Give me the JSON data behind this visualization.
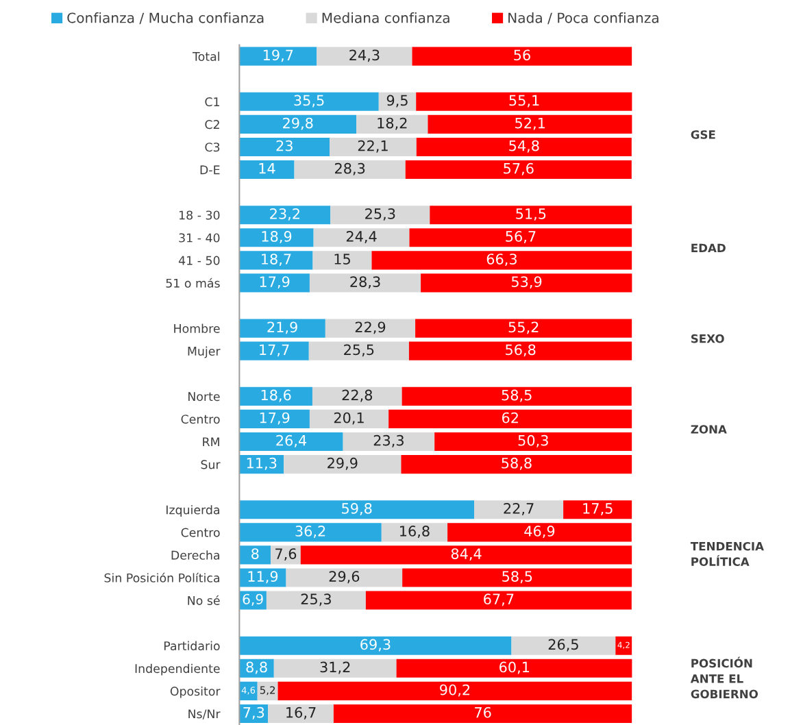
{
  "chart_data": {
    "type": "bar",
    "orientation": "horizontal",
    "stacked": true,
    "legend": "top",
    "grid": false,
    "tick_labels": "y",
    "xlim": [
      0,
      100
    ],
    "categories": [
      "Total",
      null,
      "C1",
      "C2",
      "C3",
      "D-E",
      null,
      "18 - 30",
      "31 - 40",
      "41 - 50",
      "51 o más",
      null,
      "Hombre",
      "Mujer",
      null,
      "Norte",
      "Centro",
      "RM",
      "Sur",
      null,
      "Izquierda",
      "Centro",
      "Derecha",
      "Sin Posición Política",
      "No sé",
      null,
      "Partidario",
      "Independiente",
      "Opositor",
      "Ns/Nr"
    ],
    "series": [
      {
        "name": "Confianza / Mucha confianza",
        "color": "#29abe2",
        "values": [
          19.7,
          null,
          35.5,
          29.8,
          23,
          14,
          null,
          23.2,
          18.9,
          18.7,
          17.9,
          null,
          21.9,
          17.7,
          null,
          18.6,
          17.9,
          26.4,
          11.3,
          null,
          59.8,
          36.2,
          8,
          11.9,
          6.9,
          null,
          69.3,
          8.8,
          4.6,
          7.3
        ],
        "value_labels": [
          "19,7",
          null,
          "35,5",
          "29,8",
          "23",
          "14",
          null,
          "23,2",
          "18,9",
          "18,7",
          "17,9",
          null,
          "21,9",
          "17,7",
          null,
          "18,6",
          "17,9",
          "26,4",
          "11,3",
          null,
          "59,8",
          "36,2",
          "8",
          "11,9",
          "6,9",
          null,
          "69,3",
          "8,8",
          "4,6",
          "7,3"
        ]
      },
      {
        "name": "Mediana confianza",
        "color": "#d9d9d9",
        "values": [
          24.3,
          null,
          9.5,
          18.2,
          22.1,
          28.3,
          null,
          25.3,
          24.4,
          15,
          28.3,
          null,
          22.9,
          25.5,
          null,
          22.8,
          20.1,
          23.3,
          29.9,
          null,
          22.7,
          16.8,
          7.6,
          29.6,
          25.3,
          null,
          26.5,
          31.2,
          5.2,
          16.7
        ],
        "value_labels": [
          "24,3",
          null,
          "9,5",
          "18,2",
          "22,1",
          "28,3",
          null,
          "25,3",
          "24,4",
          "15",
          "28,3",
          null,
          "22,9",
          "25,5",
          null,
          "22,8",
          "20,1",
          "23,3",
          "29,9",
          null,
          "22,7",
          "16,8",
          "7,6",
          "29,6",
          "25,3",
          null,
          "26,5",
          "31,2",
          "5,2",
          "16,7"
        ]
      },
      {
        "name": "Nada / Poca confianza",
        "color": "#ff0000",
        "values": [
          56,
          null,
          55.1,
          52.1,
          54.8,
          57.6,
          null,
          51.5,
          56.7,
          66.3,
          53.9,
          null,
          55.2,
          56.8,
          null,
          58.5,
          62,
          50.3,
          58.8,
          null,
          17.5,
          46.9,
          84.4,
          58.5,
          67.7,
          null,
          4.2,
          60.1,
          90.2,
          76
        ],
        "value_labels": [
          "56",
          null,
          "55,1",
          "52,1",
          "54,8",
          "57,6",
          null,
          "51,5",
          "56,7",
          "66,3",
          "53,9",
          null,
          "55,2",
          "56,8",
          null,
          "58,5",
          "62",
          "50,3",
          "58,8",
          null,
          "17,5",
          "46,9",
          "84,4",
          "58,5",
          "67,7",
          null,
          "4,2",
          "60,1",
          "90,2",
          "76"
        ]
      }
    ],
    "annotations": [
      "GSE",
      "EDAD",
      "SEXO",
      "ZONA",
      "TENDENCIA\nPOLÍTICA",
      "POSICIÓN\nANTE EL\nGOBIERNO"
    ]
  }
}
